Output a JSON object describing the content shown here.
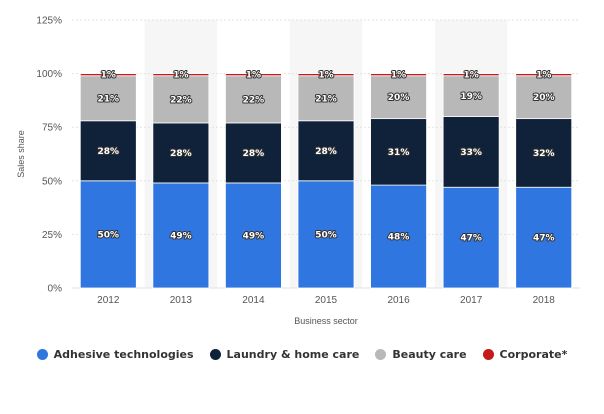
{
  "chart_data": {
    "type": "bar",
    "stacked": true,
    "xlabel": "Business sector",
    "ylabel": "Sales share",
    "ylim": [
      0,
      125
    ],
    "yticks": [
      "0%",
      "25%",
      "50%",
      "75%",
      "100%",
      "125%"
    ],
    "ytick_values": [
      0,
      25,
      50,
      75,
      100,
      125
    ],
    "categories": [
      "2012",
      "2013",
      "2014",
      "2015",
      "2016",
      "2017",
      "2018"
    ],
    "series": [
      {
        "name": "Adhesive technologies",
        "color": "#2f76e0",
        "values": [
          50,
          49,
          49,
          50,
          48,
          47,
          47
        ],
        "labels": [
          "50%",
          "49%",
          "49%",
          "50%",
          "48%",
          "47%",
          "47%"
        ]
      },
      {
        "name": "Laundry & home care",
        "color": "#10213a",
        "values": [
          28,
          28,
          28,
          28,
          31,
          33,
          32
        ],
        "labels": [
          "28%",
          "28%",
          "28%",
          "28%",
          "31%",
          "33%",
          "32%"
        ]
      },
      {
        "name": "Beauty care",
        "color": "#b8b8b8",
        "values": [
          21,
          22,
          22,
          21,
          20,
          19,
          20
        ],
        "labels": [
          "21%",
          "22%",
          "22%",
          "21%",
          "20%",
          "19%",
          "20%"
        ]
      },
      {
        "name": "Corporate*",
        "color": "#c41a1a",
        "values": [
          1,
          1,
          1,
          1,
          1,
          1,
          1
        ],
        "labels": [
          "1%",
          "1%",
          "1%",
          "1%",
          "1%",
          "1%",
          "1%"
        ]
      }
    ],
    "grid": true,
    "legend_position": "bottom"
  }
}
